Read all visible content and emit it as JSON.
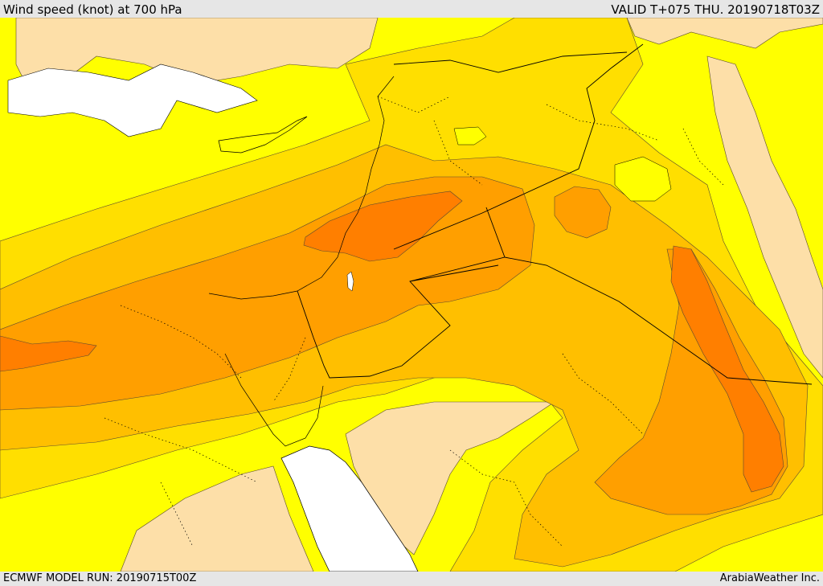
{
  "header": {
    "title": "Wind speed (knot) at 700 hPa",
    "valid": "VALID T+075 THU. 20190718T03Z"
  },
  "footer": {
    "model_run": "ECMWF MODEL RUN: 20190715T00Z",
    "credit": "ArabiaWeather Inc."
  },
  "palette": {
    "land_low": "#fddfa8",
    "yellow": "#ffff00",
    "gold": "#ffdf00",
    "amber": "#ffbf00",
    "orange": "#ff9f00",
    "dark_orange": "#ff7f00",
    "sea": "#ffffff",
    "contour": "#5a4a30",
    "border": "#000000"
  }
}
